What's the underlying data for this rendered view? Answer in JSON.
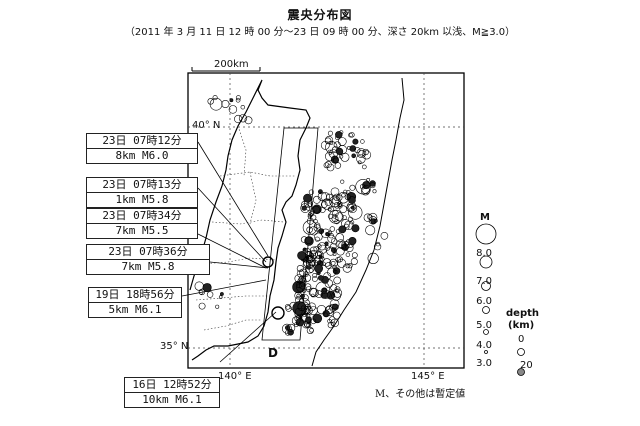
{
  "map": {
    "title": "震央分布図",
    "subtitle": "（2011 年 3 月 11 日 12 時 00 分～23 日 09 時 00 分、深さ 20km 以浅、M≧3.0）",
    "scale_label": "200km",
    "lat_labels": {
      "north": "40° N",
      "south": "35° N"
    },
    "lon_labels": {
      "west": "140° E",
      "east": "145° E"
    },
    "region_label": "D",
    "note": "M、その他は暫定値"
  },
  "legend": {
    "magnitude_title": "M",
    "magnitudes": [
      "8.0",
      "7.0",
      "6.0",
      "5.0",
      "4.0",
      "3.0"
    ],
    "depth_title": "depth",
    "depth_unit": "(km)",
    "depths": [
      "0",
      "20"
    ]
  },
  "callouts": [
    {
      "date": "23日 07時12分",
      "detail": "8km  M6.0"
    },
    {
      "date": "23日 07時13分",
      "detail": "1km  M5.8"
    },
    {
      "date": "23日 07時34分",
      "detail": "7km  M5.5"
    },
    {
      "date": "23日 07時36分",
      "detail": "7km  M5.8"
    },
    {
      "date": "19日 18時56分",
      "detail": "5km  M6.1"
    },
    {
      "date": "16日 12時52分",
      "detail": "10km  M6.1"
    }
  ]
}
